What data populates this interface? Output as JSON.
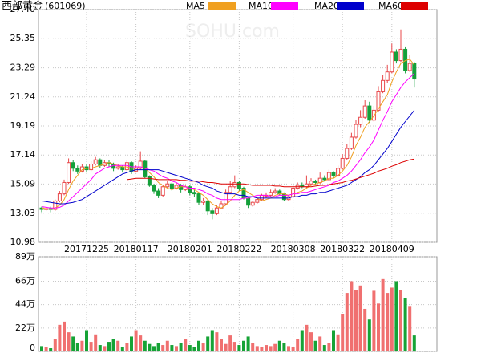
{
  "chart_data": {
    "type": "candlestick",
    "title": "西部黄金",
    "code": "(601069)",
    "watermark": "SOHU.com",
    "up_color": "#e8474a",
    "down_color": "#14a03a",
    "categories": [
      null,
      null,
      null,
      null,
      null,
      null,
      null,
      null,
      null,
      null,
      "20171225",
      null,
      null,
      null,
      null,
      null,
      null,
      null,
      null,
      null,
      null,
      "20180117",
      null,
      null,
      null,
      null,
      null,
      null,
      null,
      null,
      null,
      null,
      null,
      "20180201",
      null,
      null,
      null,
      null,
      null,
      null,
      null,
      null,
      null,
      null,
      "20180222",
      null,
      null,
      null,
      null,
      null,
      null,
      null,
      null,
      null,
      null,
      null,
      "20180308",
      null,
      null,
      null,
      null,
      null,
      null,
      null,
      null,
      null,
      null,
      "20180322",
      null,
      null,
      null,
      null,
      null,
      null,
      null,
      null,
      null,
      null,
      "20180409",
      null,
      null,
      null,
      null,
      null
    ],
    "candles": [
      [
        13.4,
        13.5,
        13.1,
        13.3
      ],
      [
        13.3,
        13.5,
        13.2,
        13.35
      ],
      [
        13.35,
        13.5,
        13.1,
        13.3
      ],
      [
        13.3,
        14.0,
        13.2,
        13.9
      ],
      [
        13.9,
        14.6,
        13.8,
        14.4
      ],
      [
        14.4,
        15.4,
        14.3,
        15.2
      ],
      [
        15.2,
        16.9,
        15.1,
        16.6
      ],
      [
        16.6,
        16.8,
        16.0,
        16.2
      ],
      [
        16.2,
        16.4,
        15.8,
        16.0
      ],
      [
        16.0,
        16.5,
        15.9,
        16.3
      ],
      [
        16.3,
        16.5,
        15.9,
        16.1
      ],
      [
        16.1,
        16.7,
        16.0,
        16.5
      ],
      [
        16.5,
        17.0,
        16.4,
        16.8
      ],
      [
        16.8,
        16.9,
        16.2,
        16.4
      ],
      [
        16.4,
        16.8,
        16.3,
        16.6
      ],
      [
        16.6,
        16.8,
        16.3,
        16.5
      ],
      [
        16.5,
        16.6,
        16.0,
        16.2
      ],
      [
        16.2,
        16.5,
        16.1,
        16.3
      ],
      [
        16.3,
        16.4,
        15.9,
        16.1
      ],
      [
        16.1,
        16.8,
        16.0,
        16.6
      ],
      [
        16.6,
        16.7,
        15.8,
        16.0
      ],
      [
        16.0,
        16.4,
        15.9,
        16.2
      ],
      [
        16.2,
        17.4,
        16.1,
        16.7
      ],
      [
        16.7,
        16.8,
        15.5,
        15.6
      ],
      [
        15.6,
        15.7,
        14.9,
        15.0
      ],
      [
        15.0,
        15.1,
        14.4,
        14.6
      ],
      [
        14.6,
        14.8,
        14.1,
        14.3
      ],
      [
        14.3,
        15.0,
        14.2,
        14.9
      ],
      [
        14.9,
        15.3,
        14.8,
        15.1
      ],
      [
        15.1,
        15.2,
        14.6,
        14.8
      ],
      [
        14.8,
        15.2,
        14.7,
        15.0
      ],
      [
        15.0,
        15.1,
        14.5,
        14.7
      ],
      [
        14.7,
        15.0,
        14.6,
        14.9
      ],
      [
        14.9,
        15.0,
        14.3,
        14.5
      ],
      [
        14.5,
        14.7,
        14.2,
        14.4
      ],
      [
        14.4,
        14.5,
        13.6,
        13.8
      ],
      [
        13.8,
        14.1,
        13.6,
        13.9
      ],
      [
        13.9,
        14.0,
        12.9,
        13.2
      ],
      [
        13.2,
        13.4,
        12.6,
        13.0
      ],
      [
        13.0,
        13.6,
        12.9,
        13.4
      ],
      [
        13.4,
        13.9,
        13.3,
        13.7
      ],
      [
        13.7,
        14.7,
        13.6,
        14.5
      ],
      [
        14.5,
        15.3,
        14.4,
        14.9
      ],
      [
        14.9,
        15.7,
        14.8,
        15.2
      ],
      [
        15.2,
        15.3,
        14.6,
        14.8
      ],
      [
        14.8,
        14.9,
        14.0,
        14.1
      ],
      [
        14.1,
        14.2,
        13.4,
        13.6
      ],
      [
        13.6,
        13.9,
        13.5,
        13.8
      ],
      [
        13.8,
        14.2,
        13.7,
        14.0
      ],
      [
        14.0,
        14.4,
        13.9,
        14.3
      ],
      [
        14.3,
        14.5,
        14.1,
        14.3
      ],
      [
        14.3,
        14.7,
        14.2,
        14.5
      ],
      [
        14.5,
        14.8,
        14.4,
        14.6
      ],
      [
        14.6,
        14.7,
        14.3,
        14.4
      ],
      [
        14.4,
        14.5,
        13.9,
        14.0
      ],
      [
        14.0,
        14.3,
        13.9,
        14.2
      ],
      [
        14.2,
        15.0,
        14.1,
        14.8
      ],
      [
        14.8,
        15.2,
        14.7,
        15.0
      ],
      [
        15.0,
        15.2,
        14.8,
        14.9
      ],
      [
        14.9,
        15.7,
        14.8,
        15.1
      ],
      [
        15.1,
        15.5,
        15.0,
        15.3
      ],
      [
        15.3,
        15.4,
        15.0,
        15.2
      ],
      [
        15.2,
        15.9,
        15.1,
        15.5
      ],
      [
        15.5,
        15.7,
        15.3,
        15.4
      ],
      [
        15.4,
        16.1,
        15.3,
        15.9
      ],
      [
        15.9,
        16.0,
        15.5,
        15.7
      ],
      [
        15.7,
        16.4,
        15.6,
        16.2
      ],
      [
        16.2,
        17.2,
        16.1,
        16.9
      ],
      [
        16.9,
        17.9,
        16.8,
        17.6
      ],
      [
        17.6,
        18.7,
        17.5,
        18.4
      ],
      [
        18.4,
        19.6,
        18.3,
        19.3
      ],
      [
        19.3,
        20.3,
        19.1,
        19.8
      ],
      [
        19.8,
        21.0,
        19.7,
        20.6
      ],
      [
        20.6,
        20.9,
        19.4,
        19.6
      ],
      [
        19.6,
        20.6,
        19.5,
        20.3
      ],
      [
        20.3,
        22.0,
        20.2,
        21.6
      ],
      [
        21.6,
        22.8,
        21.5,
        22.4
      ],
      [
        22.4,
        23.5,
        22.2,
        23.0
      ],
      [
        23.0,
        25.0,
        22.9,
        24.4
      ],
      [
        24.4,
        24.6,
        23.6,
        23.8
      ],
      [
        23.8,
        26.0,
        23.7,
        24.6
      ],
      [
        24.6,
        24.8,
        22.9,
        23.1
      ],
      [
        23.1,
        24.2,
        23.0,
        23.6
      ],
      [
        23.6,
        23.7,
        21.9,
        22.5
      ]
    ],
    "ylim": [
      10.98,
      27.4
    ],
    "yticks": [
      10.98,
      13.03,
      15.09,
      17.14,
      19.19,
      21.24,
      23.29,
      25.35,
      {
        "value": 27.4,
        "label": "27.40"
      }
    ],
    "grid": true,
    "series": [
      {
        "name": "MA5",
        "color": "#f0a020",
        "values": [
          13.4,
          13.35,
          13.3,
          13.4,
          13.6,
          14.0,
          14.7,
          15.3,
          15.7,
          16.1,
          16.2,
          16.2,
          16.3,
          16.4,
          16.5,
          16.6,
          16.5,
          16.4,
          16.3,
          16.3,
          16.2,
          16.2,
          16.3,
          16.2,
          15.9,
          15.6,
          15.2,
          15.0,
          14.8,
          14.7,
          14.8,
          14.9,
          14.9,
          14.8,
          14.7,
          14.5,
          14.3,
          14.0,
          13.7,
          13.5,
          13.4,
          13.6,
          13.9,
          14.3,
          14.6,
          14.7,
          14.5,
          14.3,
          14.1,
          13.9,
          14.0,
          14.1,
          14.3,
          14.4,
          14.4,
          14.3,
          14.4,
          14.5,
          14.6,
          14.8,
          15.0,
          15.1,
          15.2,
          15.3,
          15.5,
          15.5,
          15.7,
          16.0,
          16.4,
          17.0,
          17.8,
          18.4,
          19.1,
          19.5,
          19.9,
          20.4,
          20.9,
          21.4,
          22.3,
          23.0,
          23.6,
          23.8,
          23.9,
          23.5
        ]
      },
      {
        "name": "MA10",
        "color": "#ff00ff",
        "values": [
          13.5,
          13.45,
          13.4,
          13.4,
          13.45,
          13.6,
          13.9,
          14.2,
          14.5,
          14.8,
          15.1,
          15.4,
          15.8,
          16.0,
          16.2,
          16.3,
          16.4,
          16.4,
          16.4,
          16.4,
          16.3,
          16.3,
          16.3,
          16.2,
          16.1,
          16.0,
          15.8,
          15.6,
          15.5,
          15.3,
          15.2,
          15.0,
          14.9,
          14.8,
          14.8,
          14.7,
          14.6,
          14.4,
          14.3,
          14.1,
          14.0,
          14.0,
          14.0,
          14.0,
          14.0,
          14.1,
          14.1,
          14.2,
          14.3,
          14.3,
          14.3,
          14.2,
          14.2,
          14.3,
          14.3,
          14.3,
          14.4,
          14.4,
          14.5,
          14.5,
          14.6,
          14.7,
          14.8,
          14.9,
          15.0,
          15.2,
          15.3,
          15.5,
          15.7,
          16.0,
          16.4,
          16.8,
          17.3,
          17.7,
          18.2,
          18.9,
          19.6,
          20.2,
          20.9,
          21.4,
          21.9,
          22.3,
          22.6,
          22.9
        ]
      },
      {
        "name": "MA20",
        "color": "#0000cc",
        "values": [
          13.9,
          13.85,
          13.8,
          13.75,
          13.7,
          13.7,
          13.75,
          13.8,
          13.9,
          14.0,
          14.2,
          14.4,
          14.6,
          14.8,
          15.0,
          15.2,
          15.4,
          15.6,
          15.8,
          15.9,
          16.0,
          16.1,
          16.1,
          16.1,
          16.1,
          16.1,
          16.1,
          16.0,
          15.9,
          15.8,
          15.7,
          15.6,
          15.5,
          15.4,
          15.3,
          15.2,
          15.0,
          14.9,
          14.8,
          14.6,
          14.5,
          14.4,
          14.4,
          14.4,
          14.3,
          14.3,
          14.2,
          14.2,
          14.1,
          14.1,
          14.1,
          14.1,
          14.1,
          14.1,
          14.1,
          14.1,
          14.2,
          14.2,
          14.3,
          14.3,
          14.4,
          14.4,
          14.5,
          14.5,
          14.6,
          14.7,
          14.8,
          14.9,
          15.0,
          15.2,
          15.4,
          15.6,
          15.9,
          16.1,
          16.4,
          16.8,
          17.2,
          17.6,
          18.1,
          18.6,
          19.1,
          19.5,
          19.9,
          20.3
        ]
      },
      {
        "name": "MA60",
        "color": "#dd0000",
        "values": [
          null,
          null,
          null,
          null,
          null,
          null,
          null,
          null,
          null,
          null,
          null,
          null,
          null,
          null,
          null,
          null,
          null,
          null,
          null,
          15.4,
          15.45,
          15.5,
          15.5,
          15.5,
          15.5,
          15.45,
          15.4,
          15.4,
          15.4,
          15.4,
          15.4,
          15.35,
          15.35,
          15.3,
          15.3,
          15.3,
          15.25,
          15.2,
          15.2,
          15.15,
          15.1,
          15.1,
          15.1,
          15.1,
          15.1,
          15.1,
          15.05,
          15.0,
          15.0,
          15.0,
          15.0,
          15.0,
          14.95,
          14.95,
          14.9,
          14.9,
          14.9,
          14.9,
          14.9,
          14.9,
          14.9,
          14.95,
          15.0,
          15.0,
          15.05,
          15.1,
          15.15,
          15.2,
          15.3,
          15.35,
          15.45,
          15.55,
          15.65,
          15.75,
          15.85,
          16.0,
          16.1,
          16.2,
          16.35,
          16.45,
          16.6,
          16.7,
          16.8,
          16.85
        ]
      }
    ],
    "volume": {
      "values": [
        5,
        4,
        3,
        12,
        25,
        28,
        18,
        14,
        8,
        10,
        20,
        9,
        16,
        6,
        5,
        9,
        12,
        10,
        4,
        8,
        14,
        20,
        15,
        10,
        7,
        5,
        8,
        6,
        10,
        6,
        5,
        8,
        12,
        6,
        4,
        10,
        8,
        14,
        20,
        18,
        12,
        7,
        15,
        9,
        6,
        10,
        14,
        8,
        5,
        4,
        6,
        5,
        7,
        10,
        8,
        5,
        4,
        12,
        20,
        25,
        18,
        10,
        14,
        6,
        8,
        20,
        16,
        35,
        55,
        66,
        58,
        62,
        40,
        30,
        57,
        45,
        68,
        55,
        60,
        66,
        58,
        50,
        42,
        15
      ],
      "ylim": [
        0,
        89
      ],
      "yticks": [
        0,
        {
          "value": 22,
          "label": "22万"
        },
        {
          "value": 44,
          "label": "44万"
        },
        {
          "value": 66,
          "label": "66万"
        },
        {
          "value": 89,
          "label": "89万"
        }
      ],
      "up_color": "#f07070",
      "down_color": "#16a336"
    }
  }
}
